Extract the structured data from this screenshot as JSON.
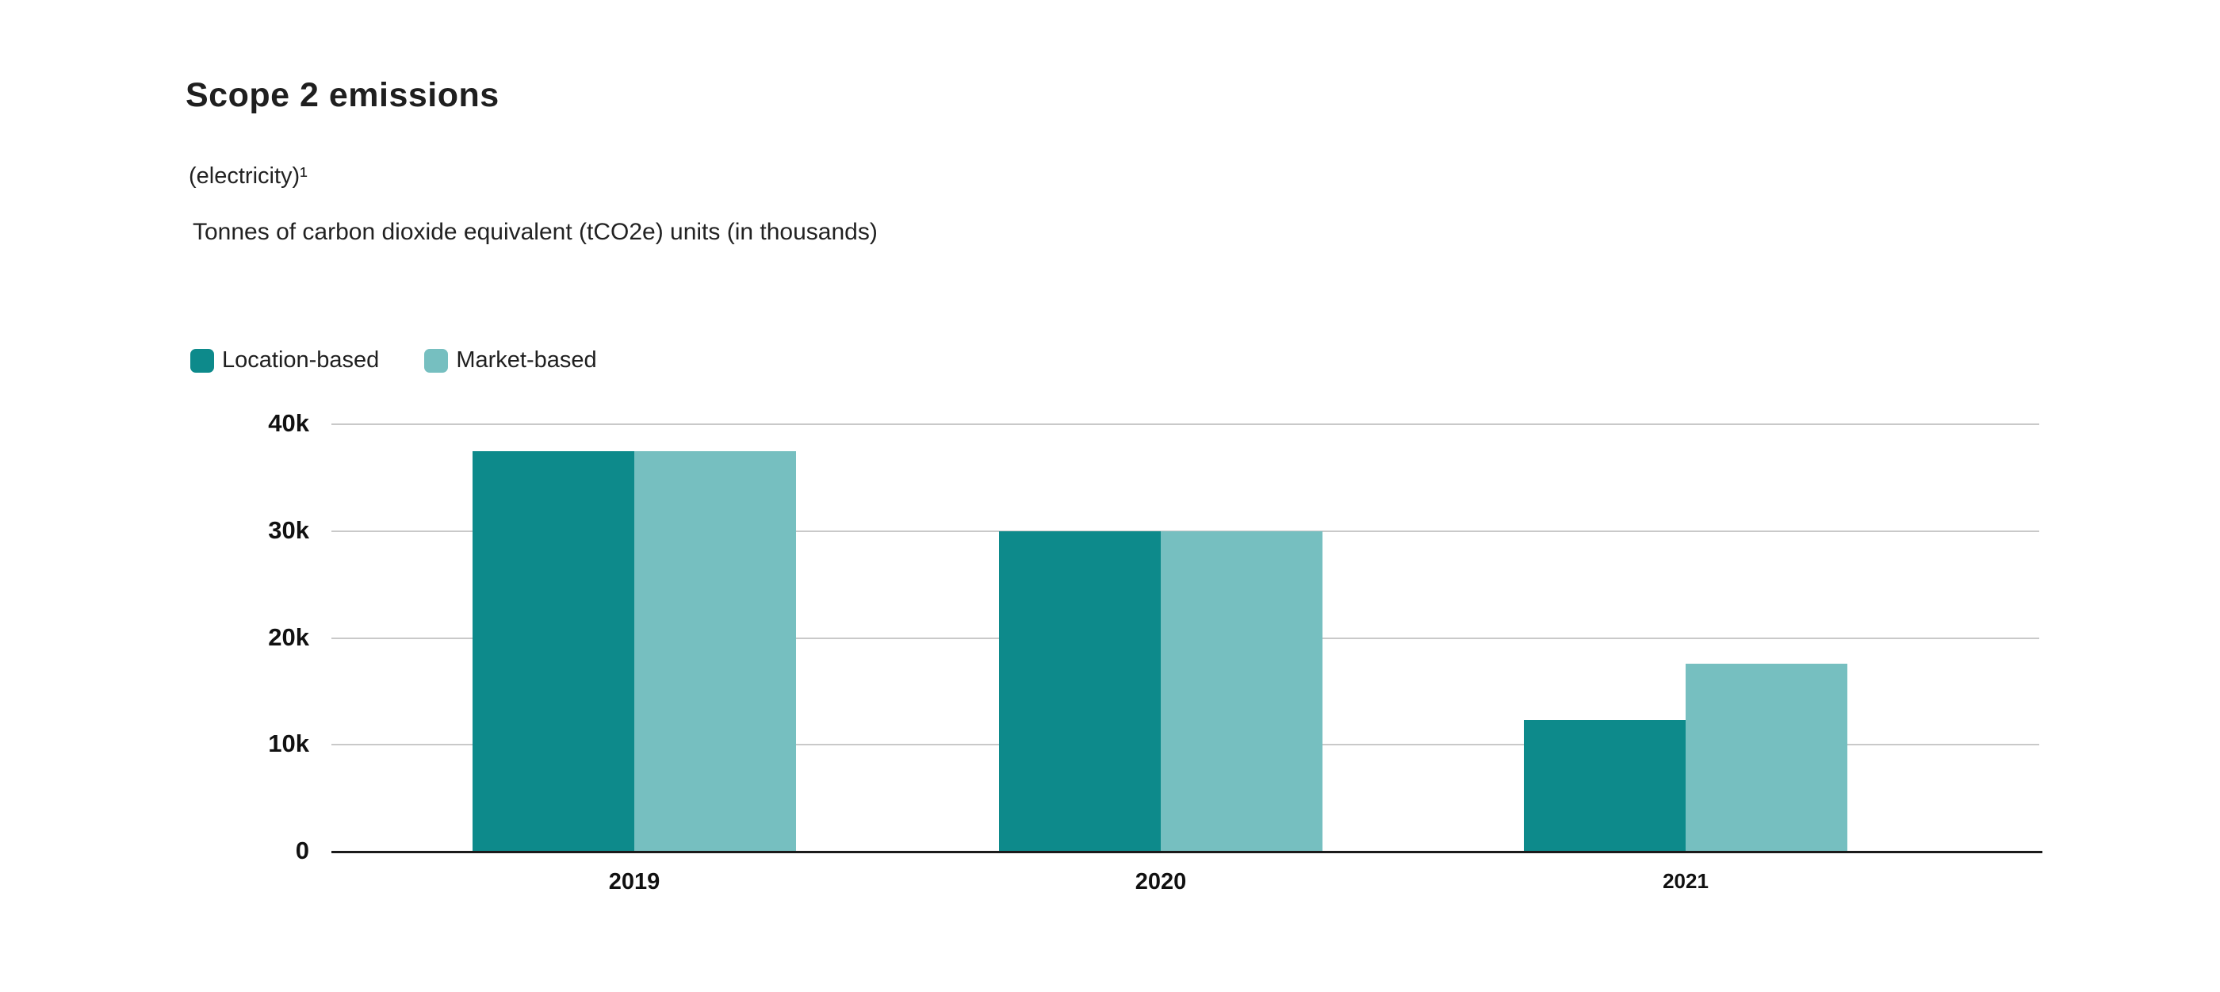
{
  "title": "Scope 2 emissions",
  "subtitle_note": "(electricity)¹",
  "subtitle_units": "Tonnes of carbon dioxide equivalent (tCO2e) units (in thousands)",
  "legend": [
    {
      "label": "Location-based",
      "color": "#0d8a8b"
    },
    {
      "label": "Market-based",
      "color": "#76bfc0"
    }
  ],
  "chart_data": {
    "type": "bar",
    "title": "Scope 2 emissions",
    "subtitle": "(electricity)¹",
    "ylabel": "Tonnes of carbon dioxide equivalent (tCO2e), thousands",
    "xlabel": "",
    "categories": [
      "2019",
      "2020",
      "2021"
    ],
    "series": [
      {
        "name": "Location-based",
        "color": "#0d8a8b",
        "values": [
          37.5,
          30.0,
          12.3
        ]
      },
      {
        "name": "Market-based",
        "color": "#76bfc0",
        "values": [
          37.5,
          30.0,
          17.6
        ]
      }
    ],
    "value_unit": "thousand tCO2e",
    "ylim": [
      0,
      40
    ],
    "yticks": [
      {
        "value": 0,
        "label": "0"
      },
      {
        "value": 10,
        "label": "10k"
      },
      {
        "value": 20,
        "label": "20k"
      },
      {
        "value": 30,
        "label": "30k"
      },
      {
        "value": 40,
        "label": "40k"
      }
    ],
    "grid": true,
    "legend_position": "top-left"
  }
}
